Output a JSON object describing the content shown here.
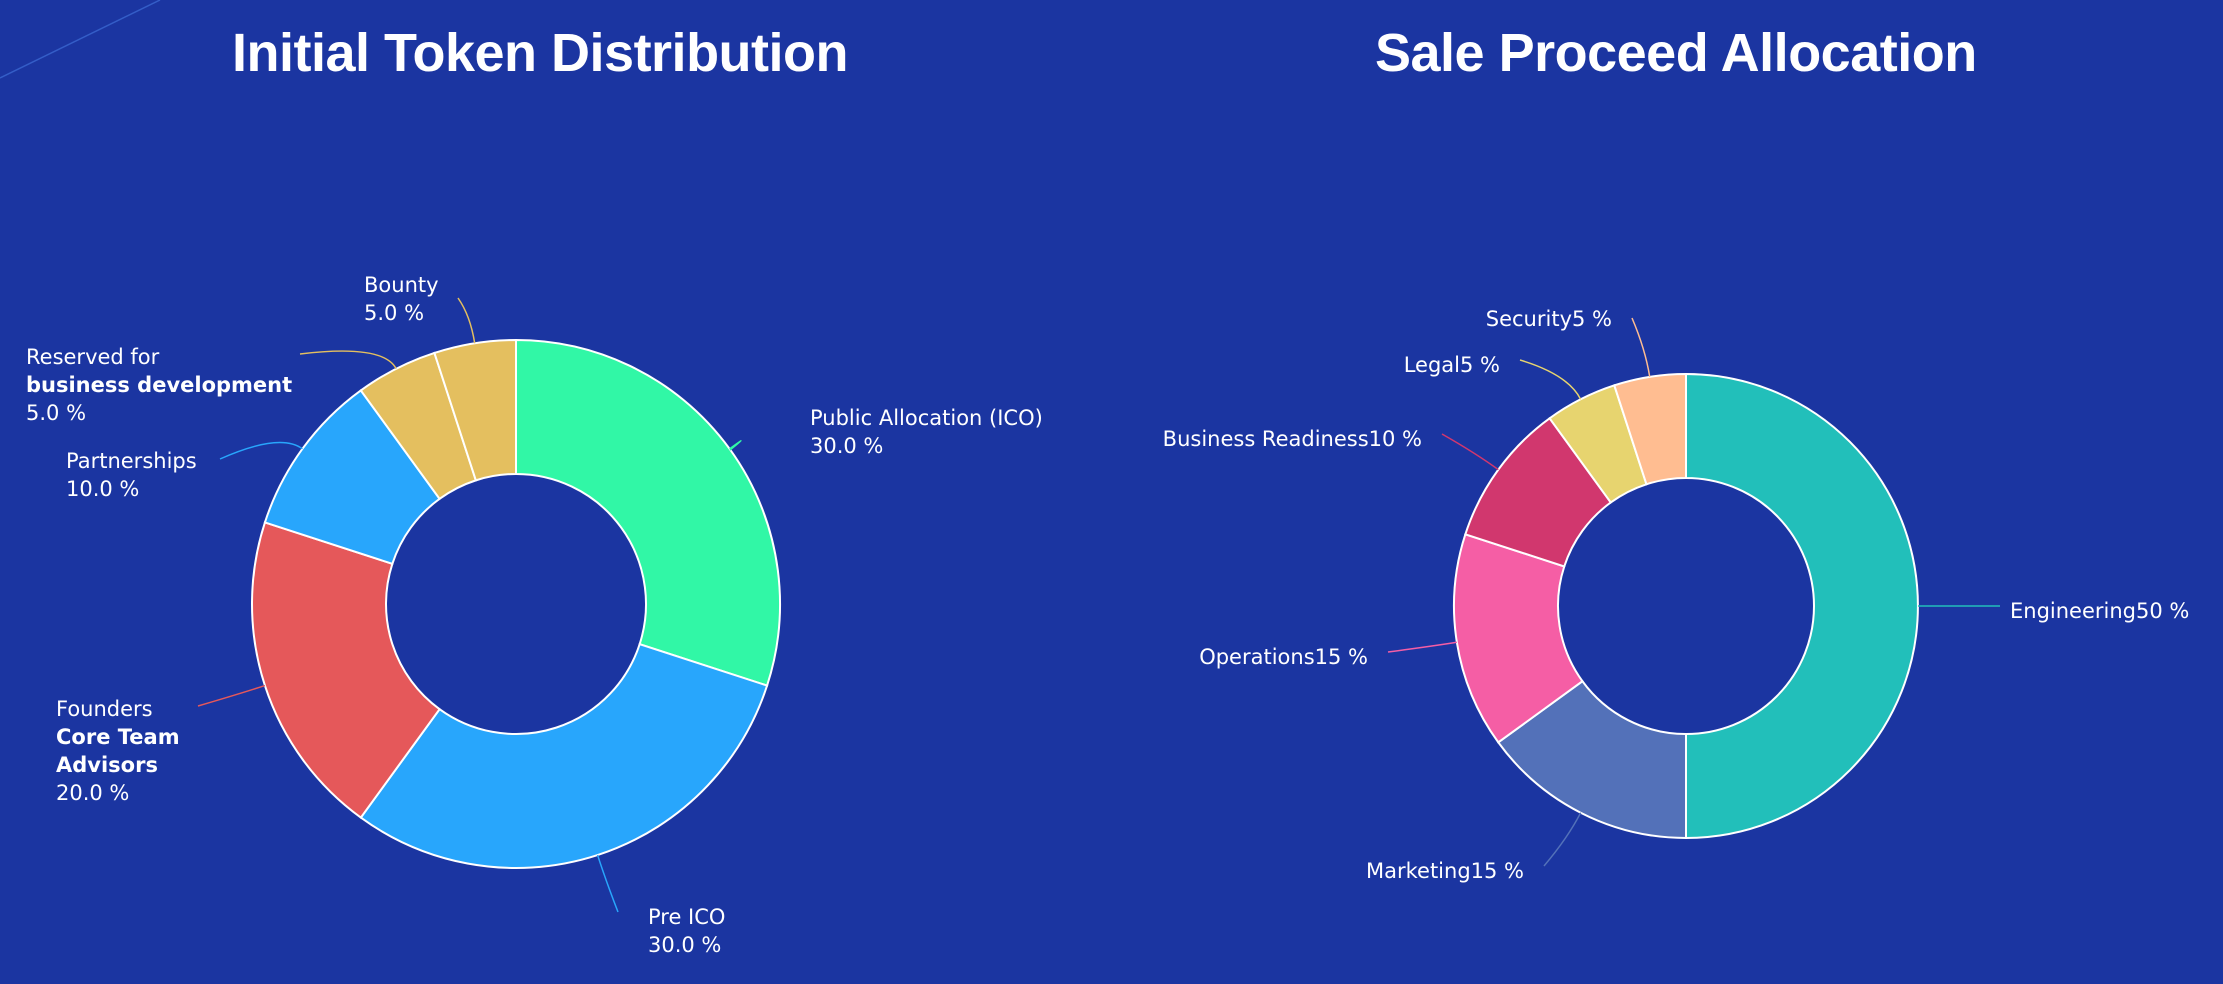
{
  "chart_data": [
    {
      "type": "pie",
      "donut": true,
      "title": "Initial Token Distribution",
      "start_angle_deg": 0,
      "slices": [
        {
          "value": 30.0,
          "color": "#31f7a6",
          "lines": [
            "Public Allocation (ICO)",
            "30.0 %"
          ],
          "bold_lines": []
        },
        {
          "value": 30.0,
          "color": "#28a6fc",
          "lines": [
            "Pre ICO",
            "30.0 %"
          ],
          "bold_lines": []
        },
        {
          "value": 20.0,
          "color": "#e5585a",
          "lines": [
            "Founders",
            "Core Team",
            "Advisors",
            "20.0 %"
          ],
          "bold_lines": [
            1,
            2
          ]
        },
        {
          "value": 10.0,
          "color": "#28a6fc",
          "lines": [
            "Partnerships",
            "10.0 %"
          ],
          "bold_lines": []
        },
        {
          "value": 5.0,
          "color": "#e4bf5f",
          "lines": [
            "Reserved for",
            "business development",
            "5.0 %"
          ],
          "bold_lines": [
            1
          ]
        },
        {
          "value": 5.0,
          "color": "#e4bf5f",
          "lines": [
            "Bounty",
            "5.0 %"
          ],
          "bold_lines": []
        }
      ]
    },
    {
      "type": "pie",
      "donut": true,
      "title": "Sale Proceed Allocation",
      "start_angle_deg": 0,
      "slices": [
        {
          "value": 50,
          "color": "#22bfba",
          "lines": [
            "Engineering50 %"
          ],
          "bold_lines": []
        },
        {
          "value": 15,
          "color": "#5371b9",
          "lines": [
            "Marketing15 %"
          ],
          "bold_lines": []
        },
        {
          "value": 15,
          "color": "#f55ea5",
          "lines": [
            "Operations15 %"
          ],
          "bold_lines": []
        },
        {
          "value": 10,
          "color": "#d1376e",
          "lines": [
            "Business Readiness10 %"
          ],
          "bold_lines": []
        },
        {
          "value": 5,
          "color": "#e7d46f",
          "lines": [
            "Legal5 %"
          ],
          "bold_lines": []
        },
        {
          "value": 5,
          "color": "#ffbd91",
          "lines": [
            "Security5 %"
          ],
          "bold_lines": []
        }
      ]
    }
  ]
}
